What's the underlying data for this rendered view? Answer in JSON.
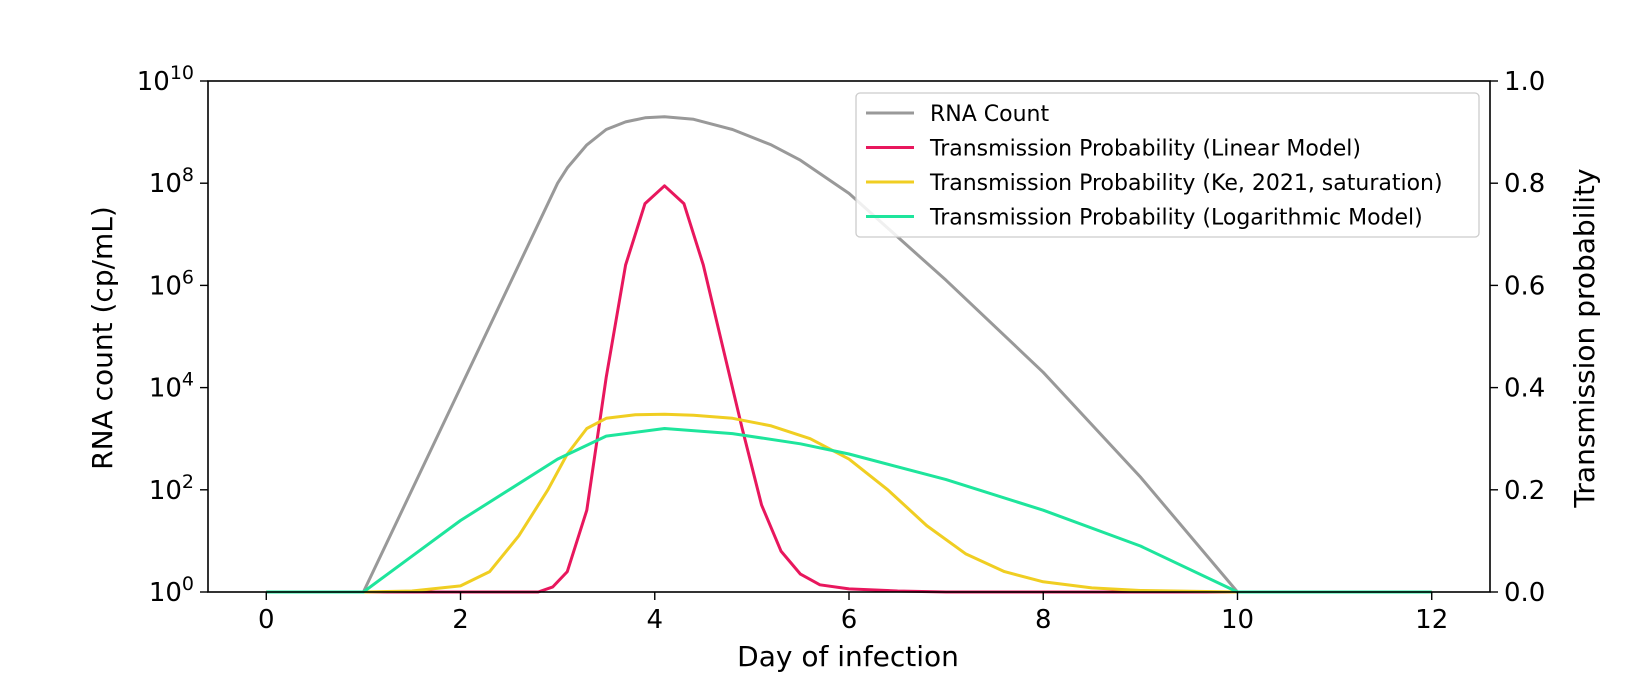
{
  "chart_data": {
    "type": "line",
    "xlabel": "Day of infection",
    "ylabel_left": "RNA count (cp/mL)",
    "ylabel_right": "Transmission probability",
    "x_ticks": [
      0,
      2,
      4,
      6,
      8,
      10,
      12
    ],
    "xlim": [
      -0.6,
      12.6
    ],
    "left_axis": {
      "scale": "log",
      "ylim_exponent": [
        0,
        10
      ],
      "tick_exponents": [
        0,
        2,
        4,
        6,
        8,
        10
      ],
      "tick_base": "10"
    },
    "right_axis": {
      "scale": "linear",
      "ylim": [
        0,
        1
      ],
      "tick_labels": [
        "0.0",
        "0.2",
        "0.4",
        "0.6",
        "0.8",
        "1.0"
      ]
    },
    "legend_position": "top-right",
    "grid": false,
    "series": [
      {
        "name": "RNA Count",
        "axis": "left",
        "color": "#999999",
        "points": [
          [
            1.0,
            0
          ],
          [
            2.0,
            4
          ],
          [
            3.0,
            8
          ],
          [
            3.1,
            8.3
          ],
          [
            3.3,
            8.75
          ],
          [
            3.5,
            9.05
          ],
          [
            3.7,
            9.2
          ],
          [
            3.9,
            9.28
          ],
          [
            4.1,
            9.3
          ],
          [
            4.4,
            9.25
          ],
          [
            4.8,
            9.05
          ],
          [
            5.2,
            8.75
          ],
          [
            5.5,
            8.45
          ],
          [
            6.0,
            7.8
          ],
          [
            7.0,
            6.1
          ],
          [
            8.0,
            4.3
          ],
          [
            9.0,
            2.25
          ],
          [
            10.0,
            0
          ]
        ]
      },
      {
        "name": "Transmission Probability (Linear Model)",
        "axis": "right",
        "color": "#e8175d",
        "points": [
          [
            0.0,
            0
          ],
          [
            2.8,
            0.0
          ],
          [
            2.95,
            0.01
          ],
          [
            3.1,
            0.04
          ],
          [
            3.3,
            0.16
          ],
          [
            3.5,
            0.42
          ],
          [
            3.7,
            0.64
          ],
          [
            3.9,
            0.76
          ],
          [
            4.1,
            0.795
          ],
          [
            4.3,
            0.76
          ],
          [
            4.5,
            0.64
          ],
          [
            4.7,
            0.48
          ],
          [
            4.9,
            0.32
          ],
          [
            5.1,
            0.17
          ],
          [
            5.3,
            0.08
          ],
          [
            5.5,
            0.035
          ],
          [
            5.7,
            0.014
          ],
          [
            6.0,
            0.006
          ],
          [
            6.5,
            0.002
          ],
          [
            7.0,
            0.0
          ],
          [
            12.0,
            0
          ]
        ]
      },
      {
        "name": "Transmission Probability (Ke, 2021, saturation)",
        "axis": "right",
        "color": "#f0ce22",
        "points": [
          [
            0.0,
            0
          ],
          [
            1.0,
            0.0
          ],
          [
            1.5,
            0.002
          ],
          [
            2.0,
            0.012
          ],
          [
            2.3,
            0.04
          ],
          [
            2.6,
            0.11
          ],
          [
            2.9,
            0.2
          ],
          [
            3.1,
            0.27
          ],
          [
            3.3,
            0.32
          ],
          [
            3.5,
            0.34
          ],
          [
            3.8,
            0.347
          ],
          [
            4.1,
            0.348
          ],
          [
            4.4,
            0.346
          ],
          [
            4.8,
            0.34
          ],
          [
            5.2,
            0.325
          ],
          [
            5.6,
            0.3
          ],
          [
            6.0,
            0.26
          ],
          [
            6.4,
            0.2
          ],
          [
            6.8,
            0.13
          ],
          [
            7.2,
            0.075
          ],
          [
            7.6,
            0.04
          ],
          [
            8.0,
            0.02
          ],
          [
            8.5,
            0.008
          ],
          [
            9.0,
            0.003
          ],
          [
            10.0,
            0.0
          ],
          [
            12.0,
            0
          ]
        ]
      },
      {
        "name": "Transmission Probability (Logarithmic Model)",
        "axis": "right",
        "color": "#1ee59c",
        "points": [
          [
            0.0,
            0
          ],
          [
            1.0,
            0.0
          ],
          [
            1.5,
            0.07
          ],
          [
            2.0,
            0.14
          ],
          [
            2.5,
            0.2
          ],
          [
            3.0,
            0.26
          ],
          [
            3.5,
            0.305
          ],
          [
            4.1,
            0.32
          ],
          [
            4.8,
            0.31
          ],
          [
            5.5,
            0.29
          ],
          [
            6.0,
            0.27
          ],
          [
            7.0,
            0.22
          ],
          [
            8.0,
            0.16
          ],
          [
            9.0,
            0.09
          ],
          [
            10.0,
            0.0
          ],
          [
            12.0,
            0
          ]
        ]
      }
    ]
  }
}
